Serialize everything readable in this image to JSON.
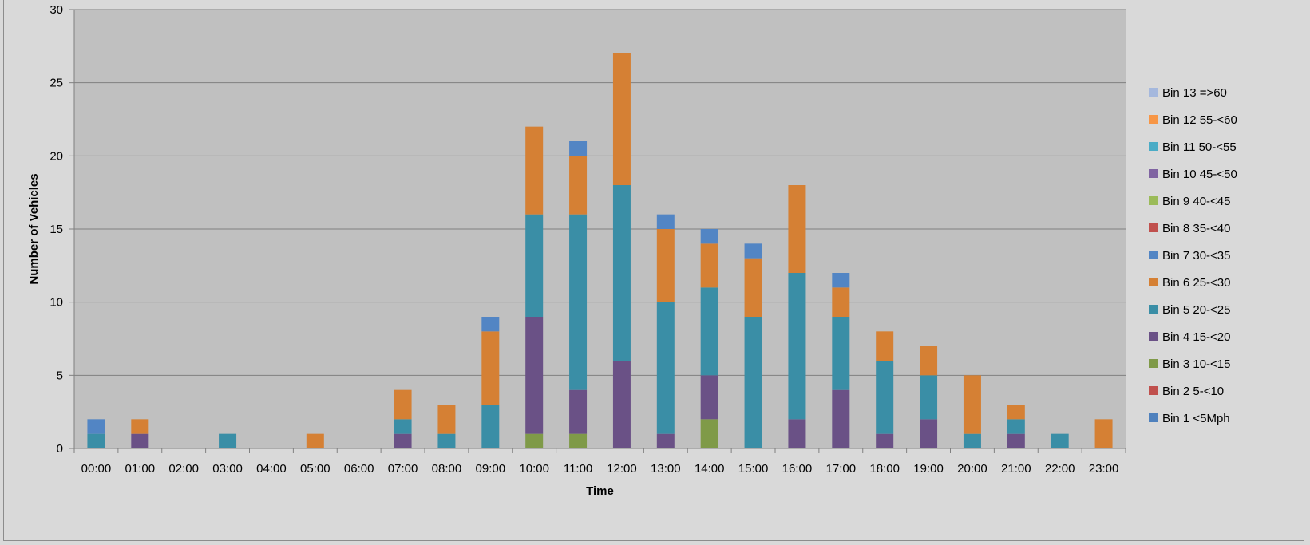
{
  "chart_data": {
    "type": "bar",
    "stacked": true,
    "title": "",
    "xlabel": "Time",
    "ylabel": "Number of Vehicles",
    "ylim": [
      0,
      30
    ],
    "yticks": [
      0,
      5,
      10,
      15,
      20,
      25,
      30
    ],
    "grid": true,
    "legend_position": "right",
    "categories": [
      "00:00",
      "01:00",
      "02:00",
      "03:00",
      "04:00",
      "05:00",
      "06:00",
      "07:00",
      "08:00",
      "09:00",
      "10:00",
      "11:00",
      "12:00",
      "13:00",
      "14:00",
      "15:00",
      "16:00",
      "17:00",
      "18:00",
      "19:00",
      "20:00",
      "21:00",
      "22:00",
      "23:00"
    ],
    "series": [
      {
        "name": "Bin 1 <5Mph",
        "color": "#4f81bd",
        "values": [
          0,
          0,
          0,
          0,
          0,
          0,
          0,
          0,
          0,
          0,
          0,
          0,
          0,
          0,
          0,
          0,
          0,
          0,
          0,
          0,
          0,
          0,
          0,
          0
        ]
      },
      {
        "name": "Bin 2 5-<10",
        "color": "#c0504d",
        "values": [
          0,
          0,
          0,
          0,
          0,
          0,
          0,
          0,
          0,
          0,
          0,
          0,
          0,
          0,
          0,
          0,
          0,
          0,
          0,
          0,
          0,
          0,
          0,
          0
        ]
      },
      {
        "name": "Bin 3 10-<15",
        "color": "#7f9a48",
        "values": [
          0,
          0,
          0,
          0,
          0,
          0,
          0,
          0,
          0,
          0,
          1,
          1,
          0,
          0,
          2,
          0,
          0,
          0,
          0,
          0,
          0,
          0,
          0,
          0
        ]
      },
      {
        "name": "Bin 4 15-<20",
        "color": "#6a5186",
        "values": [
          0,
          1,
          0,
          0,
          0,
          0,
          0,
          1,
          0,
          0,
          8,
          3,
          6,
          1,
          3,
          0,
          2,
          4,
          1,
          2,
          0,
          1,
          0,
          0
        ]
      },
      {
        "name": "Bin 5 20-<25",
        "color": "#3a8ea6",
        "values": [
          1,
          0,
          0,
          1,
          0,
          0,
          0,
          1,
          1,
          3,
          7,
          12,
          12,
          9,
          6,
          9,
          10,
          5,
          5,
          3,
          1,
          1,
          1,
          0
        ]
      },
      {
        "name": "Bin 6 25-<30",
        "color": "#d58034",
        "values": [
          0,
          1,
          0,
          0,
          0,
          1,
          0,
          2,
          2,
          5,
          6,
          4,
          9,
          5,
          3,
          4,
          6,
          2,
          2,
          2,
          4,
          1,
          0,
          2
        ]
      },
      {
        "name": "Bin 7 30-<35",
        "color": "#5285c4",
        "values": [
          1,
          0,
          0,
          0,
          0,
          0,
          0,
          0,
          0,
          1,
          0,
          1,
          0,
          1,
          1,
          1,
          0,
          1,
          0,
          0,
          0,
          0,
          0,
          0
        ]
      },
      {
        "name": "Bin 8 35-<40",
        "color": "#c0504d",
        "values": [
          0,
          0,
          0,
          0,
          0,
          0,
          0,
          0,
          0,
          0,
          0,
          0,
          0,
          0,
          0,
          0,
          0,
          0,
          0,
          0,
          0,
          0,
          0,
          0
        ]
      },
      {
        "name": "Bin 9 40-<45",
        "color": "#9bbb59",
        "values": [
          0,
          0,
          0,
          0,
          0,
          0,
          0,
          0,
          0,
          0,
          0,
          0,
          0,
          0,
          0,
          0,
          0,
          0,
          0,
          0,
          0,
          0,
          0,
          0
        ]
      },
      {
        "name": "Bin 10 45-<50",
        "color": "#8064a2",
        "values": [
          0,
          0,
          0,
          0,
          0,
          0,
          0,
          0,
          0,
          0,
          0,
          0,
          0,
          0,
          0,
          0,
          0,
          0,
          0,
          0,
          0,
          0,
          0,
          0
        ]
      },
      {
        "name": "Bin 11 50-<55",
        "color": "#4bacc6",
        "values": [
          0,
          0,
          0,
          0,
          0,
          0,
          0,
          0,
          0,
          0,
          0,
          0,
          0,
          0,
          0,
          0,
          0,
          0,
          0,
          0,
          0,
          0,
          0,
          0
        ]
      },
      {
        "name": "Bin 12 55-<60",
        "color": "#f79646",
        "values": [
          0,
          0,
          0,
          0,
          0,
          0,
          0,
          0,
          0,
          0,
          0,
          0,
          0,
          0,
          0,
          0,
          0,
          0,
          0,
          0,
          0,
          0,
          0,
          0
        ]
      },
      {
        "name": "Bin 13 =>60",
        "color": "#a5b8dd",
        "values": [
          0,
          0,
          0,
          0,
          0,
          0,
          0,
          0,
          0,
          0,
          0,
          0,
          0,
          0,
          0,
          0,
          0,
          0,
          0,
          0,
          0,
          0,
          0,
          0
        ]
      }
    ],
    "colors": {
      "plot_background": "#c0c0c0",
      "chart_background": "#d9d9d9",
      "gridline": "#808080"
    }
  }
}
